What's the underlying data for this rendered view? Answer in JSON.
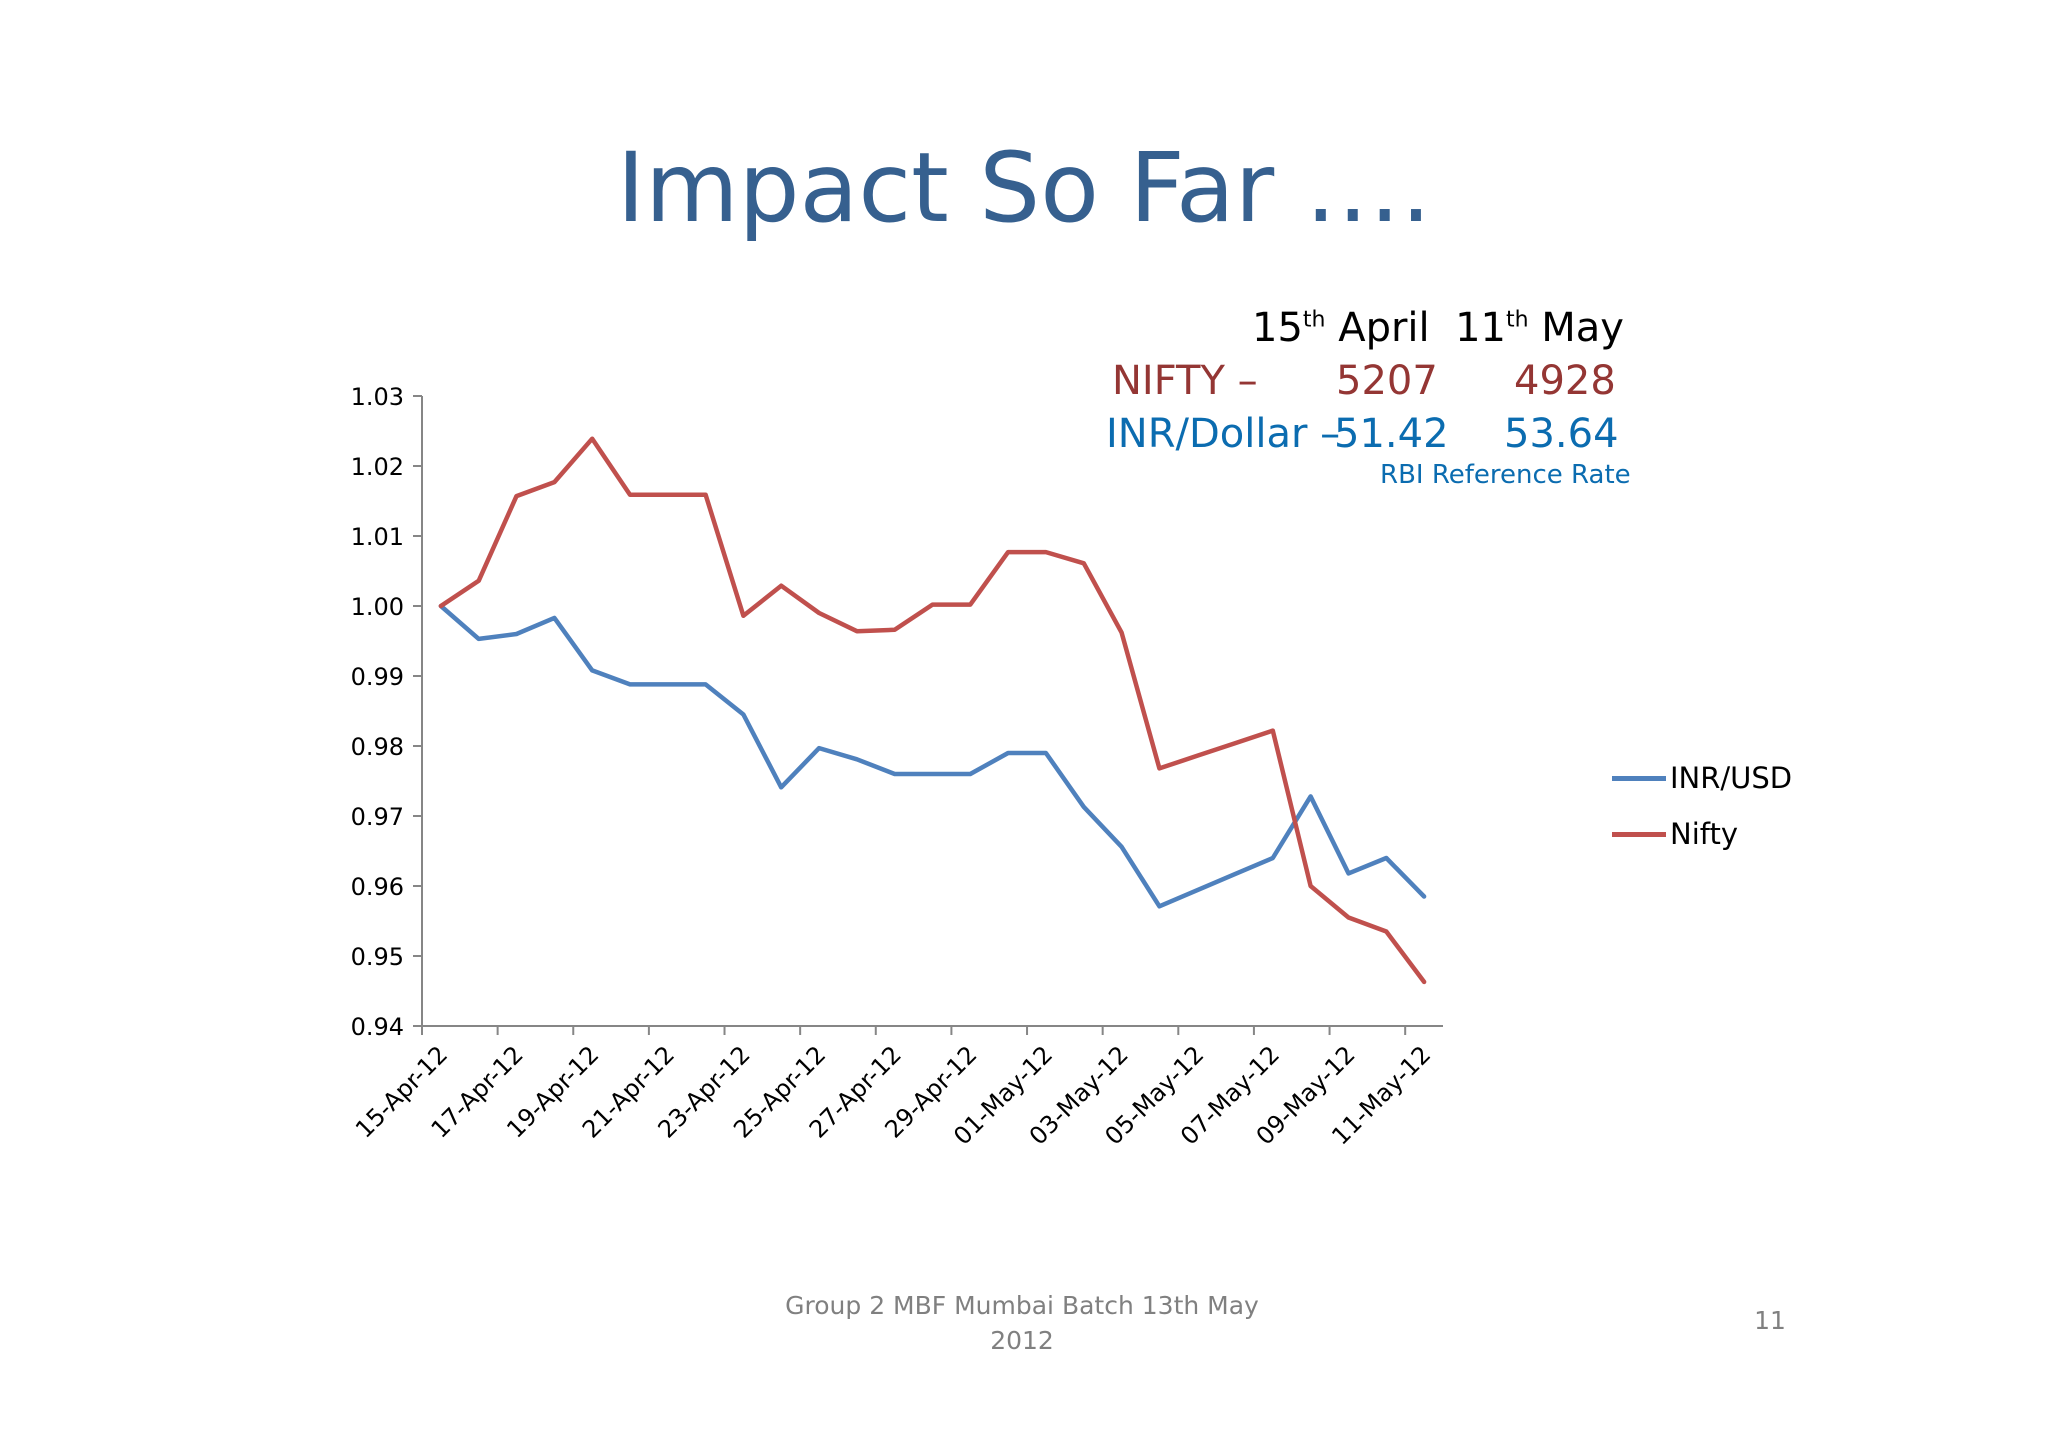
{
  "slide": {
    "title": "Impact So Far ….",
    "footer_line1": "Group 2 MBF Mumbai Batch 13th May",
    "footer_line2": "2012",
    "page_number": "11"
  },
  "info_box": {
    "date1_num": "15",
    "date1_sup": "th",
    "date1_month": "April",
    "date2_num": "11",
    "date2_sup": "th",
    "date2_month": "May",
    "nifty_label": "NIFTY –",
    "nifty_start": "5207",
    "nifty_end": "4928",
    "inr_label": "INR/Dollar –",
    "inr_start": "51.42",
    "inr_end": "53.64",
    "note": "RBI Reference Rate"
  },
  "colors": {
    "title": "#36608f",
    "inr_series": "#4f81bd",
    "nifty_series": "#c0504d",
    "nifty_text": "#943634",
    "inr_text": "#0b6cb0"
  },
  "chart_data": {
    "type": "line",
    "x": [
      "15-Apr-12",
      "16-Apr-12",
      "17-Apr-12",
      "18-Apr-12",
      "19-Apr-12",
      "20-Apr-12",
      "21-Apr-12",
      "22-Apr-12",
      "23-Apr-12",
      "24-Apr-12",
      "25-Apr-12",
      "26-Apr-12",
      "27-Apr-12",
      "28-Apr-12",
      "29-Apr-12",
      "30-Apr-12",
      "01-May-12",
      "02-May-12",
      "03-May-12",
      "04-May-12",
      "05-May-12",
      "06-May-12",
      "07-May-12",
      "08-May-12",
      "09-May-12",
      "10-May-12",
      "11-May-12"
    ],
    "tick_labels": [
      "15-Apr-12",
      "17-Apr-12",
      "19-Apr-12",
      "21-Apr-12",
      "23-Apr-12",
      "25-Apr-12",
      "27-Apr-12",
      "29-Apr-12",
      "01-May-12",
      "03-May-12",
      "05-May-12",
      "07-May-12",
      "09-May-12",
      "11-May-12"
    ],
    "y_ticks": [
      "0.94",
      "0.95",
      "0.96",
      "0.97",
      "0.98",
      "0.99",
      "1.00",
      "1.01",
      "1.02",
      "1.03"
    ],
    "ylim": [
      0.94,
      1.03
    ],
    "legend_position": "right",
    "grid": false,
    "series": [
      {
        "name": "INR/USD",
        "color": "#4f81bd",
        "values": [
          1.0,
          0.9953,
          0.996,
          0.9983,
          0.9908,
          0.9888,
          0.9888,
          0.9888,
          0.9845,
          0.9741,
          0.9797,
          0.9781,
          0.976,
          0.976,
          0.976,
          0.979,
          0.979,
          0.9713,
          0.9656,
          0.9571,
          0.9594,
          0.9617,
          0.964,
          0.9728,
          0.9618,
          0.964,
          0.9585
        ]
      },
      {
        "name": "Nifty",
        "color": "#c0504d",
        "values": [
          1.0,
          1.0036,
          1.0157,
          1.0177,
          1.0239,
          1.0159,
          1.0159,
          1.0159,
          0.9986,
          1.0029,
          0.999,
          0.9964,
          0.9966,
          1.0002,
          1.0002,
          1.0077,
          1.0077,
          1.0061,
          0.9962,
          0.9768,
          0.9786,
          0.9804,
          0.9822,
          0.96,
          0.9555,
          0.9535,
          0.9463
        ]
      }
    ]
  }
}
